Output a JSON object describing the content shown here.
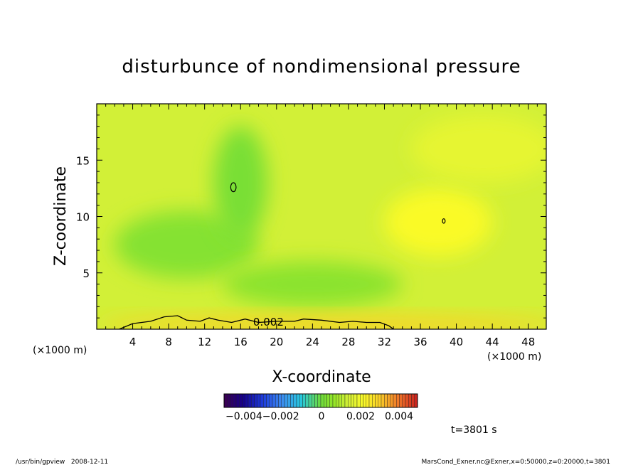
{
  "chart_data": {
    "type": "heatmap",
    "title": "disturbunce of nondimensional pressure",
    "xlabel": "X-coordinate",
    "ylabel": "Z-coordinate",
    "x_unit_left": "(×1000 m)",
    "x_unit_right": "(×1000 m)",
    "xlim": [
      0,
      50
    ],
    "ylim": [
      0,
      20
    ],
    "x_ticks": [
      4,
      8,
      12,
      16,
      20,
      24,
      28,
      32,
      36,
      40,
      44,
      48
    ],
    "x_tick_labels": [
      "4",
      "8",
      "12",
      "16",
      "20",
      "24",
      "28",
      "32",
      "36",
      "40",
      "44",
      "48"
    ],
    "y_ticks": [
      5,
      10,
      15
    ],
    "y_tick_labels": [
      "5",
      "10",
      "15"
    ],
    "contour_label": "0.002",
    "contour_level": 0.002,
    "contour_line": [
      [
        2.5,
        0
      ],
      [
        4,
        0.5
      ],
      [
        6,
        0.7
      ],
      [
        7.5,
        1.1
      ],
      [
        9,
        1.2
      ],
      [
        10,
        0.8
      ],
      [
        11.5,
        0.7
      ],
      [
        12.5,
        1.0
      ],
      [
        13.5,
        0.8
      ],
      [
        15,
        0.6
      ],
      [
        16.5,
        0.9
      ],
      [
        18,
        0.6
      ],
      [
        20,
        0.7
      ],
      [
        22,
        0.7
      ],
      [
        23,
        0.9
      ],
      [
        25,
        0.8
      ],
      [
        27,
        0.6
      ],
      [
        28.5,
        0.7
      ],
      [
        30,
        0.6
      ],
      [
        31.5,
        0.6
      ],
      [
        32.5,
        0.3
      ],
      [
        33,
        0
      ]
    ],
    "closed_contours": [
      {
        "cx": 15.2,
        "cy": 12.6,
        "rx": 0.3,
        "ry": 0.4
      },
      {
        "cx": 38.6,
        "cy": 9.6,
        "rx": 0.15,
        "ry": 0.2
      }
    ],
    "field_regions": [
      {
        "cx": 38,
        "cy": 9.5,
        "rx": 6,
        "ry": 3,
        "value": 0.0022
      },
      {
        "cx": 43,
        "cy": 16,
        "rx": 8,
        "ry": 3,
        "value": 0.0018
      },
      {
        "cx": 10,
        "cy": 7.5,
        "rx": 8,
        "ry": 3,
        "value": 0.0004
      },
      {
        "cx": 24,
        "cy": 4,
        "rx": 10,
        "ry": 2,
        "value": 0.0005
      },
      {
        "cx": 16,
        "cy": 13,
        "rx": 3,
        "ry": 5,
        "value": 0.0002
      },
      {
        "cx": 26,
        "cy": 0.4,
        "rx": 26,
        "ry": 0.8,
        "value": 0.003
      }
    ],
    "background_value": 0.0014,
    "colorbar": {
      "min": -0.005,
      "max": 0.005,
      "tick_labels": [
        "-0.004",
        "-0.002",
        "0",
        "0.002",
        "0.004"
      ],
      "ticks": [
        -0.004,
        -0.002,
        0,
        0.002,
        0.004
      ],
      "label_text": [
        "−0.004−0.002",
        "0",
        "0.002",
        "0.004"
      ]
    },
    "time_label": "t=3801 s"
  },
  "footer": {
    "left": "/usr/bin/gpview   2008-12-11",
    "right": "MarsCond_Exner.nc@Exner,x=0:50000,z=0:20000,t=3801"
  }
}
